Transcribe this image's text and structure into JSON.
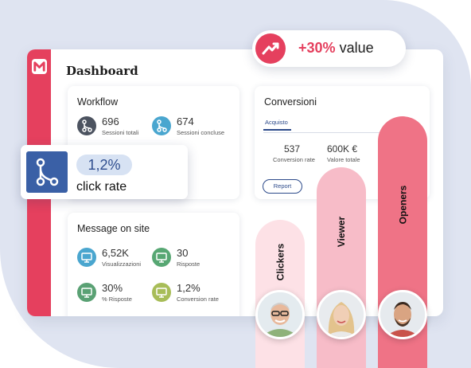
{
  "dashboard": {
    "title": "Dashboard"
  },
  "workflow": {
    "title": "Workflow",
    "stats": [
      {
        "value": "696",
        "label": "Sessioni totali",
        "color": "#4c5360"
      },
      {
        "value": "674",
        "label": "Sessioni concluse",
        "color": "#4aa6cf"
      }
    ]
  },
  "message_on_site": {
    "title": "Message on site",
    "stats": [
      {
        "value": "6,52K",
        "label": "Visualizzazioni",
        "color": "#4aa6cf"
      },
      {
        "value": "30",
        "label": "Risposte",
        "color": "#57a773"
      },
      {
        "value": "30%",
        "label": "% Risposte",
        "color": "#5aa174"
      },
      {
        "value": "1,2%",
        "label": "Conversion rate",
        "color": "#a8bd58"
      }
    ]
  },
  "conversioni": {
    "title": "Conversioni",
    "tab": "Acquisto",
    "stats": [
      {
        "value": "537",
        "label": "Conversion rate"
      },
      {
        "value": "600K €",
        "label": "Valore totale"
      }
    ],
    "report_button": "Report"
  },
  "click_rate_popup": {
    "value": "1,2%",
    "label": "click rate"
  },
  "value_badge": {
    "percent": "+30%",
    "word": "value"
  },
  "bars": [
    {
      "label": "Clickers",
      "color": "#fde1e6"
    },
    {
      "label": "Viewer",
      "color": "#f7bcc8"
    },
    {
      "label": "Openers",
      "color": "#ef7386"
    }
  ],
  "icons": {
    "logo": "brand-logo-icon",
    "workflow": "branch-icon",
    "monitor": "monitor-icon",
    "trend": "trend-up-icon"
  }
}
